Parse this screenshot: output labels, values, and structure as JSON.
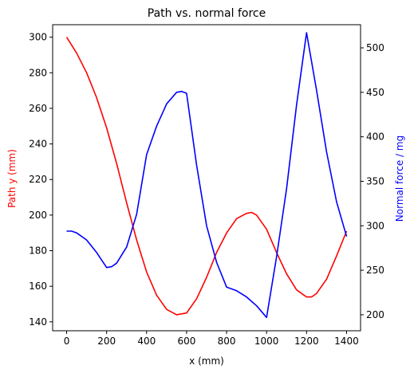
{
  "chart_data": {
    "type": "line",
    "title": "Path vs. normal force",
    "xlabel": "x (mm)",
    "ylabel_left": "Path y (mm)",
    "ylabel_right": "Normal force / mg",
    "xlim": [
      -70,
      1470
    ],
    "xticks": [
      0,
      200,
      400,
      600,
      800,
      1000,
      1200,
      1400
    ],
    "ylim_left": [
      135,
      307
    ],
    "yticks_left": [
      140,
      160,
      180,
      200,
      220,
      240,
      260,
      280,
      300
    ],
    "ylim_right": [
      182,
      526
    ],
    "yticks_right": [
      200,
      250,
      300,
      350,
      400,
      450,
      500
    ],
    "grid": false,
    "series": [
      {
        "axis": "left",
        "color": "#ff0000",
        "x": [
          0,
          50,
          100,
          150,
          200,
          250,
          300,
          350,
          400,
          450,
          500,
          550,
          600,
          650,
          700,
          750,
          800,
          850,
          900,
          925,
          950,
          1000,
          1050,
          1100,
          1150,
          1200,
          1225,
          1250,
          1300,
          1350,
          1400
        ],
        "y": [
          300,
          291,
          280,
          266,
          249,
          229,
          207,
          186,
          168,
          155,
          147,
          144,
          145,
          153,
          165,
          179,
          190,
          198,
          201,
          201.5,
          200,
          192,
          179,
          167,
          158,
          154,
          154,
          156,
          164,
          177,
          191
        ]
      },
      {
        "axis": "right",
        "color": "#0000ff",
        "x": [
          0,
          25,
          50,
          100,
          150,
          200,
          225,
          250,
          300,
          350,
          400,
          450,
          500,
          550,
          575,
          600,
          650,
          700,
          750,
          800,
          850,
          900,
          950,
          1000,
          1050,
          1100,
          1150,
          1200,
          1250,
          1300,
          1350,
          1400
        ],
        "y": [
          294,
          294,
          292,
          284,
          270,
          253,
          254,
          258,
          276,
          313,
          380,
          412,
          437,
          450,
          451,
          449,
          368,
          300,
          259,
          231,
          227,
          220,
          210,
          197,
          265,
          342,
          436,
          517,
          452,
          383,
          327,
          288
        ]
      }
    ]
  }
}
